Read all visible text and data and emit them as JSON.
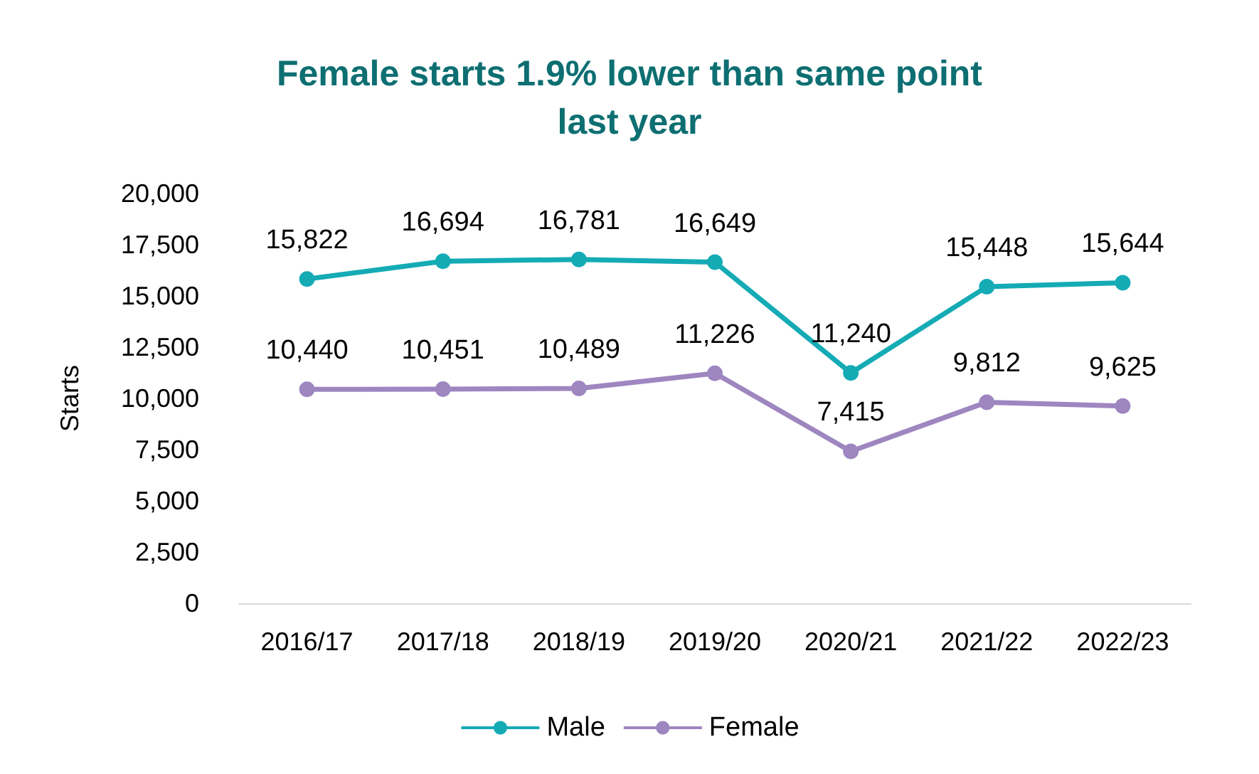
{
  "chart_data": {
    "type": "line",
    "title": "Female starts 1.9% lower than same point\nlast year",
    "ylabel": "Starts",
    "categories": [
      "2016/17",
      "2017/18",
      "2018/19",
      "2019/20",
      "2020/21",
      "2021/22",
      "2022/23"
    ],
    "series": [
      {
        "name": "Male",
        "color": "#14abb5",
        "values": [
          15822,
          16694,
          16781,
          16649,
          11240,
          15448,
          15644
        ],
        "value_labels": [
          "15,822",
          "16,694",
          "16,781",
          "16,649",
          "11,240",
          "15,448",
          "15,644"
        ]
      },
      {
        "name": "Female",
        "color": "#9e86c0",
        "values": [
          10440,
          10451,
          10489,
          11226,
          7415,
          9812,
          9625
        ],
        "value_labels": [
          "10,440",
          "10,451",
          "10,489",
          "11,226",
          "7,415",
          "9,812",
          "9,625"
        ]
      }
    ],
    "ylim": [
      0,
      20000
    ],
    "yticks": [
      0,
      {
        "value": 2500,
        "label": "2,500"
      },
      {
        "value": 5000,
        "label": "5,000"
      },
      {
        "value": 7500,
        "label": "7,500"
      },
      {
        "value": 10000,
        "label": "10,000"
      },
      {
        "value": 12500,
        "label": "12,500"
      },
      {
        "value": 15000,
        "label": "15,000"
      },
      {
        "value": 17500,
        "label": "17,500"
      },
      {
        "value": 20000,
        "label": "20,000"
      }
    ],
    "grid": false,
    "legend": "bottom",
    "marker": "circle",
    "line_style": "solid"
  }
}
